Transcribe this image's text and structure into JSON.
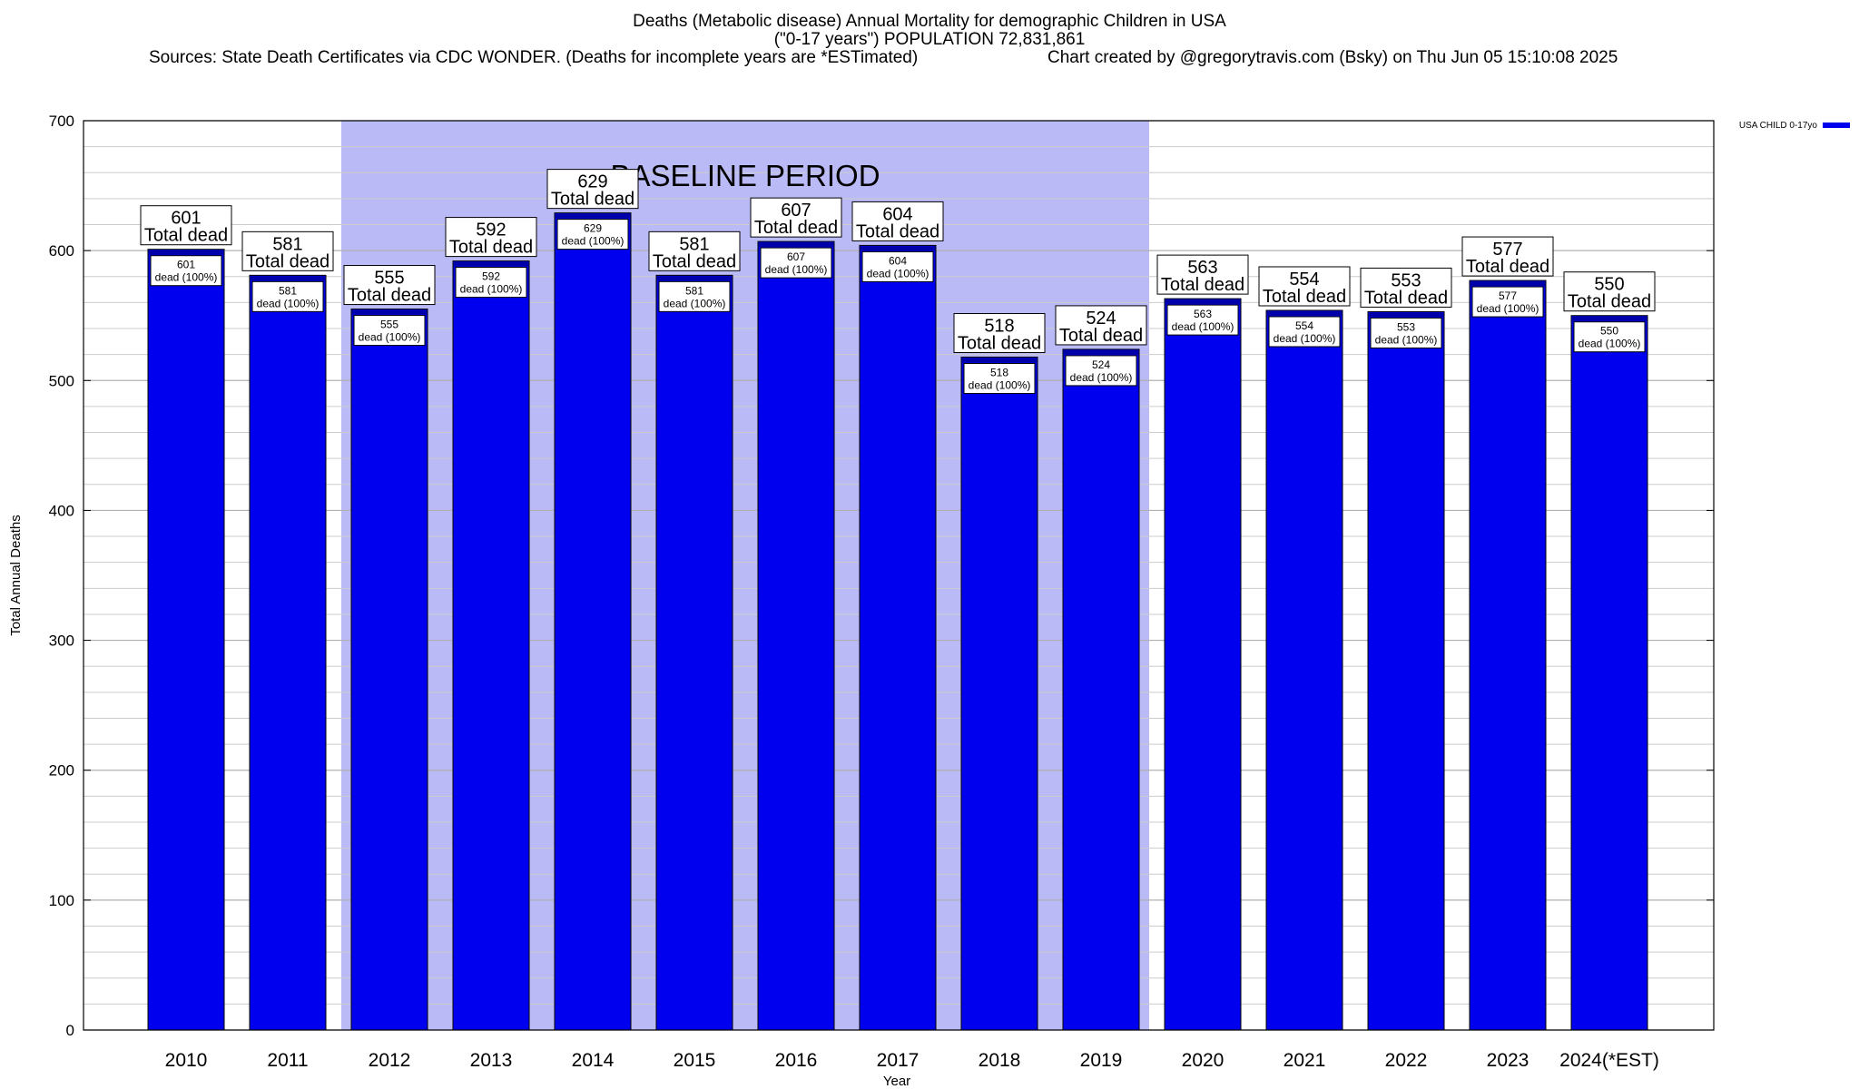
{
  "header": {
    "title_line1": "Deaths (Metabolic disease) Annual Mortality for demographic Children in USA",
    "title_line2": "(\"0-17 years\") POPULATION 72,831,861",
    "sources": "Sources: State Death Certificates via CDC WONDER. (Deaths for incomplete years are *ESTimated)",
    "credit": "Chart created by @gregorytravis.com (Bsky) on Thu Jun 05 15:10:08 2025"
  },
  "chart_data": {
    "type": "bar",
    "title": "Deaths (Metabolic disease) Annual Mortality for demographic Children in USA",
    "xlabel": "Year",
    "ylabel": "Total Annual Deaths",
    "ylim": [
      0,
      700
    ],
    "yticks": [
      0,
      100,
      200,
      300,
      400,
      500,
      600,
      700
    ],
    "minor_grid_step": 20,
    "grid": true,
    "legend_position": "top-right",
    "categories": [
      "2010",
      "2011",
      "2012",
      "2013",
      "2014",
      "2015",
      "2016",
      "2017",
      "2018",
      "2019",
      "2020",
      "2021",
      "2022",
      "2023",
      "2024(*EST)"
    ],
    "series": [
      {
        "name": "USA CHILD 0-17yo",
        "color": "#0000ee",
        "values": [
          601,
          581,
          555,
          592,
          629,
          581,
          607,
          604,
          518,
          524,
          563,
          554,
          553,
          577,
          550
        ]
      }
    ],
    "top_label_suffix": "Total dead",
    "inner_label_suffix": "dead (100%)",
    "baseline_period": {
      "label": "BASELINE PERIOD",
      "start": "2012",
      "end": "2019",
      "color": "#babaf7"
    }
  }
}
